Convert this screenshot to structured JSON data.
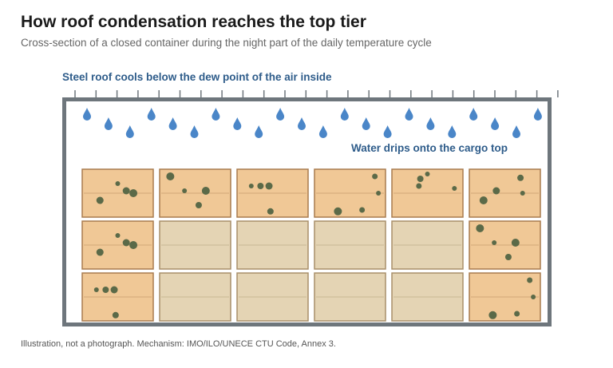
{
  "header": {
    "title": "How roof condensation reaches the top tier",
    "subtitle": "Cross-section of a closed container during the night part of the daily temperature cycle"
  },
  "diagram": {
    "roof_label": "Steel roof cools below the dew point of the air inside",
    "drip_label": "Water drips onto the cargo top",
    "tiers": 3,
    "stacks": 6,
    "wet_cartons": [
      "tier1-all",
      "tier2-stack1",
      "tier2-stack6",
      "tier3-stack1",
      "tier3-stack6"
    ],
    "drop_count": 22
  },
  "footer": {
    "note": "Illustration, not a photograph. Mechanism: IMO/ILO/UNECE CTU Code, Annex 3."
  },
  "colors": {
    "title": "#1a1a1a",
    "subtitle": "#666666",
    "label_blue": "#2e5c8a",
    "container_wall": "#6e767c",
    "droplet": "#4a86c8",
    "wet_carton": "#f0c896",
    "wet_carton_border": "#a87b4f",
    "dry_carton": "#e4d4b4",
    "dry_carton_border": "#a88f6a",
    "mould_spot": "#5b6a48"
  }
}
